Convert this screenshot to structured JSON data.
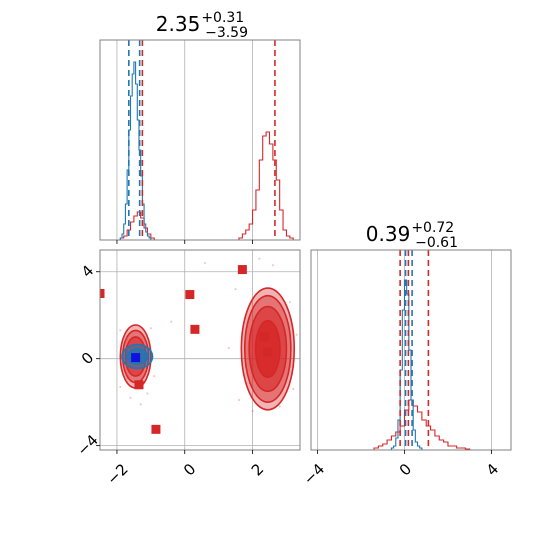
{
  "chart_data": {
    "type": "corner-plot",
    "colors": {
      "red": "#d62728",
      "blue": "#1f77b4",
      "grid": "#b0b0b0",
      "frame": "#808080"
    },
    "grid": true,
    "panels": {
      "hist_x": {
        "type": "histogram",
        "title": {
          "value": "2.35",
          "plus": "+0.31",
          "minus": "−3.59"
        },
        "xlim": [
          -2.5,
          3.4
        ],
        "ylim": [
          0,
          1.0
        ],
        "vlines": {
          "red": [
            -1.25,
            2.66
          ],
          "blue": [
            -1.65,
            -1.33
          ]
        },
        "series": [
          {
            "color": "red",
            "bin_edges": [
              -1.9,
              -1.8,
              -1.7,
              -1.6,
              -1.5,
              -1.4,
              -1.3,
              -1.2,
              -1.1,
              -1.0,
              -0.9,
              1.6,
              1.7,
              1.8,
              1.9,
              2.0,
              2.1,
              2.2,
              2.3,
              2.4,
              2.5,
              2.6,
              2.7,
              2.8,
              2.9,
              3.0,
              3.1,
              3.2
            ],
            "counts": [
              0.01,
              0.02,
              0.05,
              0.09,
              0.12,
              0.14,
              0.11,
              0.06,
              0.03,
              0.01,
              0,
              0.01,
              0.03,
              0.05,
              0.08,
              0.15,
              0.25,
              0.4,
              0.52,
              0.54,
              0.48,
              0.4,
              0.3,
              0.15,
              0.05,
              0.02,
              0.01
            ]
          },
          {
            "color": "blue",
            "bin_edges": [
              -1.9,
              -1.85,
              -1.8,
              -1.75,
              -1.7,
              -1.65,
              -1.6,
              -1.55,
              -1.5,
              -1.45,
              -1.4,
              -1.35,
              -1.3,
              -1.25,
              -1.2,
              -1.15,
              -1.1,
              -1.05,
              -1.0
            ],
            "counts": [
              0.01,
              0.03,
              0.08,
              0.18,
              0.35,
              0.55,
              0.72,
              0.83,
              0.89,
              0.78,
              0.6,
              0.45,
              0.32,
              0.18,
              0.08,
              0.04,
              0.02,
              0.01
            ]
          }
        ]
      },
      "hist_y": {
        "type": "histogram",
        "title": {
          "value": "0.39",
          "plus": "+0.72",
          "minus": "−0.61"
        },
        "xlim": [
          -4.3,
          4.9
        ],
        "ylim": [
          0,
          1.0
        ],
        "xticks": [
          -4,
          0,
          4
        ],
        "xtick_labels": [
          "−4",
          "0",
          "4"
        ],
        "vlines": {
          "red": [
            -0.2,
            0.18,
            1.1
          ],
          "blue": [
            0.05,
            0.35
          ]
        },
        "series": [
          {
            "color": "red",
            "bin_edges": [
              -1.4,
              -1.2,
              -1.0,
              -0.8,
              -0.6,
              -0.4,
              -0.2,
              0.0,
              0.2,
              0.4,
              0.6,
              0.8,
              1.0,
              1.2,
              1.4,
              1.6,
              1.8,
              2.0,
              2.2,
              2.4,
              2.6,
              2.8,
              3.0
            ],
            "counts": [
              0.01,
              0.02,
              0.03,
              0.05,
              0.07,
              0.09,
              0.12,
              0.2,
              0.25,
              0.22,
              0.19,
              0.15,
              0.12,
              0.1,
              0.07,
              0.05,
              0.04,
              0.02,
              0.02,
              0.01,
              0.01,
              0.005
            ]
          },
          {
            "color": "blue",
            "bin_edges": [
              -0.6,
              -0.5,
              -0.4,
              -0.3,
              -0.2,
              -0.1,
              0.0,
              0.1,
              0.2,
              0.3,
              0.4,
              0.5,
              0.6,
              0.7,
              0.8
            ],
            "counts": [
              0.01,
              0.02,
              0.06,
              0.15,
              0.4,
              0.7,
              0.85,
              0.78,
              0.5,
              0.25,
              0.1,
              0.04,
              0.02,
              0.01
            ]
          }
        ]
      },
      "joint": {
        "type": "scatter-contour",
        "xlim": [
          -2.5,
          3.4
        ],
        "ylim": [
          -4.2,
          5.0
        ],
        "xticks": [
          -2,
          0,
          2
        ],
        "xtick_labels": [
          "−2",
          "0",
          "2"
        ],
        "yticks": [
          -4,
          0,
          4
        ],
        "ytick_labels": [
          "−4",
          "0",
          "4"
        ],
        "markers": [
          [
            -2.5,
            3.0
          ],
          [
            0.15,
            2.95
          ],
          [
            1.7,
            4.1
          ],
          [
            0.3,
            1.35
          ],
          [
            2.35,
            1.0
          ],
          [
            2.45,
            0.3
          ],
          [
            -1.35,
            -1.2
          ],
          [
            -0.85,
            -3.25
          ]
        ],
        "blue_marker": [
          -1.45,
          0.05
        ],
        "density_blobs": [
          {
            "center": [
              -1.45,
              0.1
            ],
            "rx": [
              0.45,
              0.38,
              0.3
            ],
            "ry": [
              1.45,
              1.2,
              0.9
            ],
            "color": "red"
          },
          {
            "center": [
              2.45,
              0.45
            ],
            "rx": [
              0.78,
              0.68,
              0.55,
              0.36
            ],
            "ry": [
              2.8,
              2.45,
              1.95,
              1.3
            ],
            "color": "red"
          },
          {
            "center": [
              -1.4,
              0.1
            ],
            "rx": [
              0.45,
              0.3
            ],
            "ry": [
              0.55,
              0.35
            ],
            "color": "blue"
          }
        ]
      }
    }
  }
}
